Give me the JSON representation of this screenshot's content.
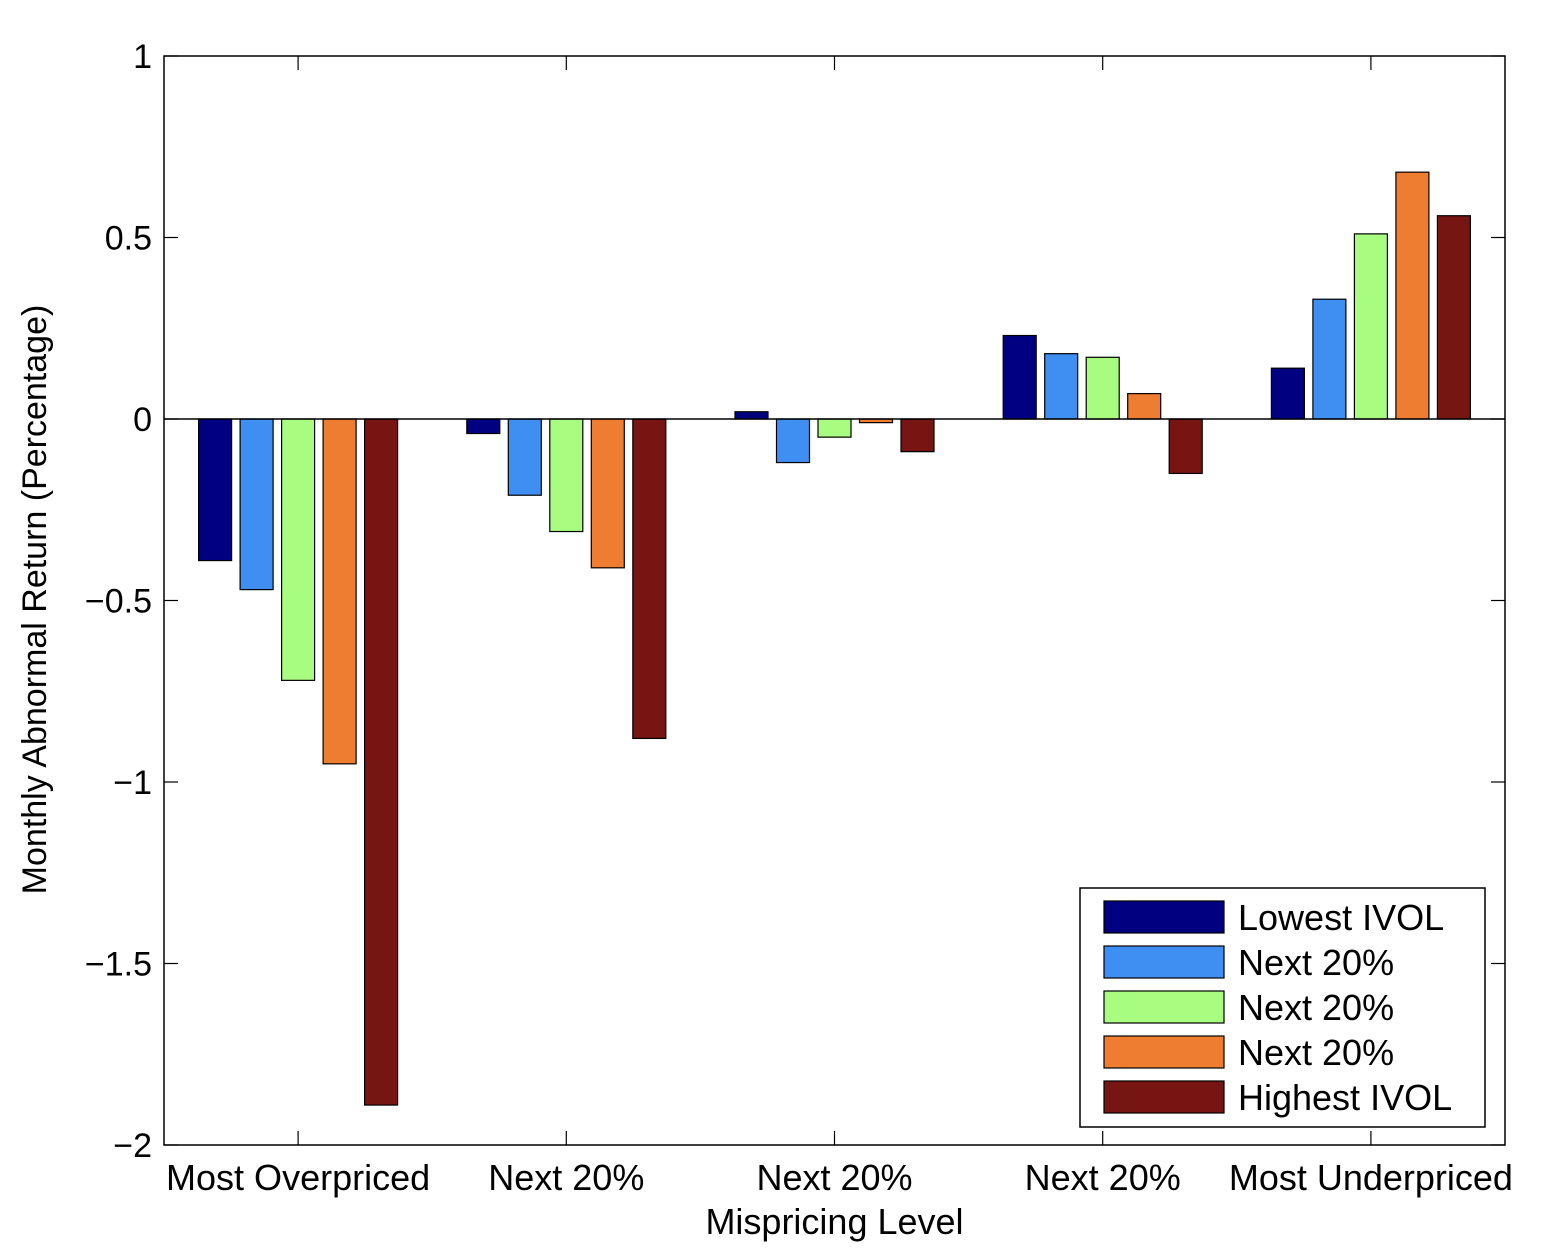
{
  "chart_data": {
    "type": "bar",
    "title": "",
    "xlabel": "Mispricing Level",
    "ylabel": "Monthly Abnormal Return (Percentage)",
    "ylim": [
      -2,
      1
    ],
    "yticks": [
      1,
      0.5,
      0,
      -0.5,
      -1,
      -1.5,
      -2
    ],
    "ytick_labels": [
      "1",
      "0.5",
      "0",
      "−0.5",
      "−1",
      "−1.5",
      "−2"
    ],
    "categories": [
      "Most Overpriced",
      "Next 20%",
      "Next 20%",
      "Next 20%",
      "Most Underpriced"
    ],
    "grid": false,
    "legend_position": "bottom-right",
    "series": [
      {
        "name": "Lowest IVOL",
        "color": "#000080",
        "values": [
          -0.39,
          -0.04,
          0.02,
          0.23,
          0.14
        ]
      },
      {
        "name": "Next 20%",
        "color": "#3f8ff2",
        "values": [
          -0.47,
          -0.21,
          -0.12,
          0.18,
          0.33
        ]
      },
      {
        "name": "Next 20%",
        "color": "#a8fc80",
        "values": [
          -0.72,
          -0.31,
          -0.05,
          0.17,
          0.51
        ]
      },
      {
        "name": "Next 20%",
        "color": "#ee7d32",
        "values": [
          -0.95,
          -0.41,
          -0.01,
          0.07,
          0.68
        ]
      },
      {
        "name": "Highest IVOL",
        "color": "#771512",
        "values": [
          -1.89,
          -0.88,
          -0.09,
          -0.15,
          0.56
        ]
      }
    ]
  }
}
